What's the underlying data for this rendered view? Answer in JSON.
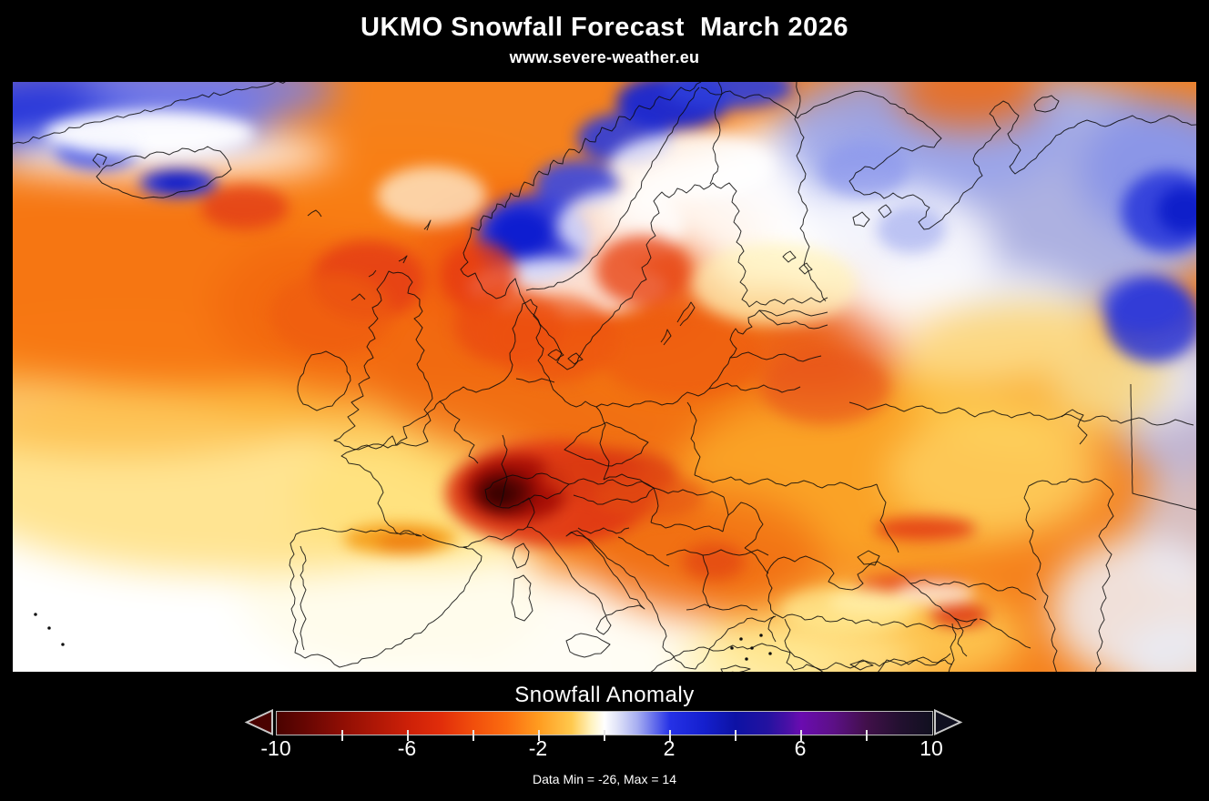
{
  "header": {
    "title": "UKMO Snowfall Forecast  March 2026",
    "subtitle": "www.severe-weather.eu"
  },
  "legend": {
    "title": "Snowfall Anomaly",
    "tick_labels": [
      "-10",
      "-6",
      "-2",
      "2",
      "6",
      "10"
    ],
    "tick_values": [
      -10,
      -6,
      -2,
      2,
      6,
      10
    ],
    "minor_tick_values": [
      -8,
      -6,
      -4,
      -2,
      0,
      2,
      4,
      6,
      8
    ],
    "footnote": "Data Min = -26, Max = 14",
    "scale": {
      "min": -10,
      "max": 10,
      "left_extend_color": "#4a0200",
      "right_extend_color": "#10101f",
      "stops": [
        {
          "value": -10,
          "color": "#4a0200"
        },
        {
          "value": -9,
          "color": "#6b0703"
        },
        {
          "value": -8,
          "color": "#8f0e04"
        },
        {
          "value": -6,
          "color": "#cd2008"
        },
        {
          "value": -5,
          "color": "#e12d0a"
        },
        {
          "value": -4,
          "color": "#f14e0c"
        },
        {
          "value": -3,
          "color": "#fb6c10"
        },
        {
          "value": -2,
          "color": "#ff9c20"
        },
        {
          "value": -1,
          "color": "#ffc94e"
        },
        {
          "value": -0.4,
          "color": "#fff3c0"
        },
        {
          "value": 0,
          "color": "#ffffff"
        },
        {
          "value": 0.4,
          "color": "#dfe2f8"
        },
        {
          "value": 1,
          "color": "#a7aef1"
        },
        {
          "value": 2,
          "color": "#2531e6"
        },
        {
          "value": 3,
          "color": "#1520cf"
        },
        {
          "value": 4,
          "color": "#0d12a4"
        },
        {
          "value": 5,
          "color": "#2412a0"
        },
        {
          "value": 5.6,
          "color": "#4a10a6"
        },
        {
          "value": 6,
          "color": "#6a0cb0"
        },
        {
          "value": 7,
          "color": "#5c1086"
        },
        {
          "value": 8,
          "color": "#41104a"
        },
        {
          "value": 9,
          "color": "#231030"
        },
        {
          "value": 10,
          "color": "#10101f"
        }
      ]
    }
  }
}
